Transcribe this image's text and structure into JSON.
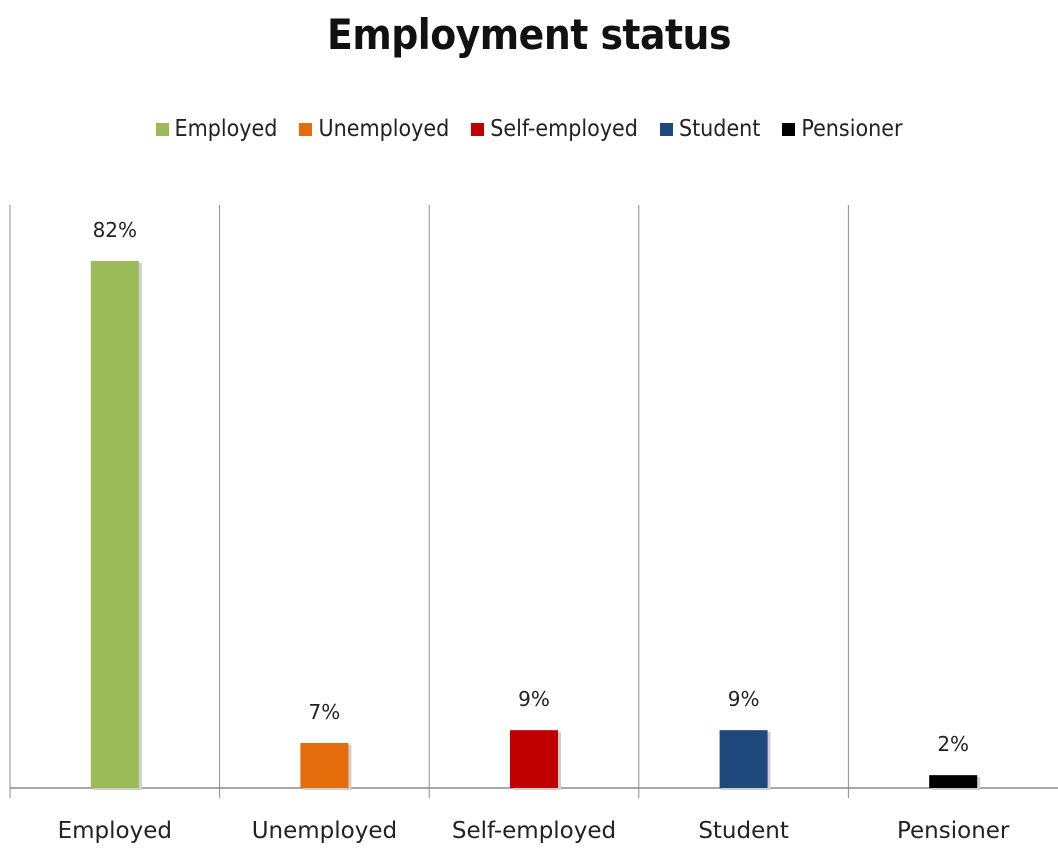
{
  "chart_data": {
    "type": "bar",
    "title": "Employment status",
    "categories": [
      "Employed",
      "Unemployed",
      "Self-employed",
      "Student",
      "Pensioner"
    ],
    "values": [
      82,
      7,
      9,
      9,
      2
    ],
    "data_labels": [
      "82%",
      "7%",
      "9%",
      "9%",
      "2%"
    ],
    "colors": [
      "#9BBB59",
      "#E46C0A",
      "#C00000",
      "#1F497D",
      "#000000"
    ],
    "ylim": [
      0,
      100
    ],
    "unit": "%",
    "legend_position": "top",
    "grid": "vertical separators between categories"
  },
  "legend": {
    "entries": [
      {
        "label": "Employed",
        "color": "#9BBB59"
      },
      {
        "label": "Unemployed",
        "color": "#E46C0A"
      },
      {
        "label": "Self-employed",
        "color": "#C00000"
      },
      {
        "label": "Student",
        "color": "#1F497D"
      },
      {
        "label": "Pensioner",
        "color": "#000000"
      }
    ]
  }
}
